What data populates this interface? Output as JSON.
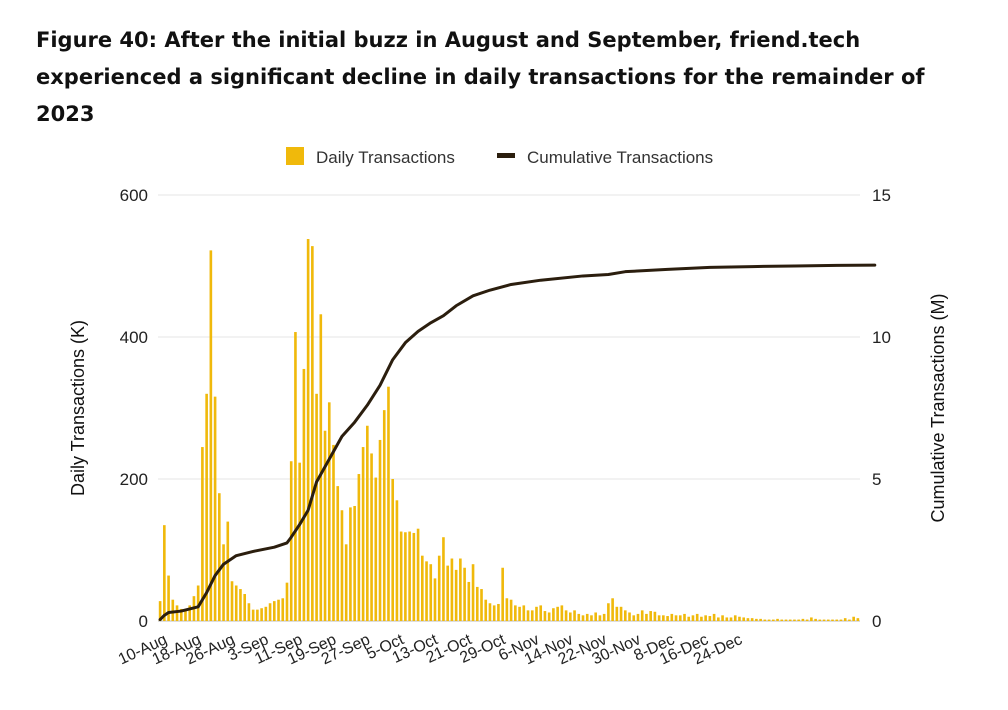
{
  "figure": {
    "title": "Figure 40: After the initial buzz in August and September, friend.tech experienced a significant decline in daily transactions for the remainder of 2023"
  },
  "colors": {
    "bar": "#F0B90B",
    "line": "#2B1E0E",
    "grid": "#e6e6e6",
    "axis": "#bbbbbb"
  },
  "chart_data": {
    "type": "bar+line",
    "title": "Figure 40: After the initial buzz in August and September, friend.tech experienced a significant decline in daily transactions for the remainder of 2023",
    "legend": {
      "position": "top-center",
      "items": [
        "Daily Transactions",
        "Cumulative Transactions"
      ]
    },
    "y_left": {
      "label": "Daily Transactions (K)",
      "range": [
        0,
        600
      ],
      "ticks": [
        "0",
        "200",
        "400",
        "600"
      ]
    },
    "y_right": {
      "label": "Cumulative Transactions (M)",
      "range": [
        0,
        15
      ],
      "ticks": [
        "0",
        "5",
        "10",
        "15"
      ]
    },
    "x_tick_labels": [
      "10-Aug",
      "18-Aug",
      "26-Aug",
      "3-Sep",
      "11-Sep",
      "19-Sep",
      "27-Sep",
      "5-Oct",
      "13-Oct",
      "21-Oct",
      "29-Oct",
      "6-Nov",
      "14-Nov",
      "22-Nov",
      "30-Nov",
      "8-Dec",
      "16-Dec",
      "24-Dec"
    ],
    "x_tick_interval_days": 8,
    "series": [
      {
        "name": "Daily Transactions",
        "kind": "bar",
        "axis": "left",
        "values": [
          28,
          135,
          64,
          30,
          22,
          17,
          15,
          22,
          35,
          50,
          245,
          320,
          522,
          316,
          180,
          108,
          140,
          56,
          50,
          45,
          38,
          25,
          16,
          16,
          18,
          20,
          25,
          28,
          30,
          32,
          54,
          225,
          407,
          223,
          355,
          538,
          528,
          320,
          432,
          268,
          308,
          248,
          190,
          156,
          108,
          160,
          162,
          207,
          245,
          275,
          236,
          202,
          255,
          297,
          330,
          200,
          170,
          126,
          125,
          126,
          124,
          130,
          92,
          84,
          80,
          60,
          92,
          118,
          78,
          88,
          72,
          88,
          75,
          55,
          80,
          48,
          45,
          30,
          25,
          22,
          24,
          75,
          32,
          30,
          22,
          20,
          22,
          15,
          15,
          20,
          22,
          14,
          12,
          18,
          20,
          22,
          15,
          12,
          15,
          10,
          8,
          10,
          8,
          12,
          8,
          10,
          25,
          32,
          20,
          20,
          15,
          12,
          8,
          10,
          15,
          10,
          14,
          13,
          8,
          8,
          7,
          10,
          8,
          8,
          10,
          6,
          8,
          10,
          6,
          8,
          7,
          10,
          5,
          8,
          5,
          5,
          8,
          6,
          5,
          4,
          4,
          3,
          3,
          2,
          2,
          2,
          3,
          2,
          2,
          2,
          2,
          2,
          3,
          2,
          5,
          3,
          2,
          2,
          2,
          2,
          2,
          2,
          4,
          2,
          6,
          4
        ]
      },
      {
        "name": "Cumulative Transactions",
        "kind": "line",
        "axis": "right",
        "points": [
          [
            0,
            0.05
          ],
          [
            1,
            0.2
          ],
          [
            2,
            0.3
          ],
          [
            5,
            0.35
          ],
          [
            9,
            0.5
          ],
          [
            11,
            1.0
          ],
          [
            13,
            1.6
          ],
          [
            15,
            2.0
          ],
          [
            18,
            2.3
          ],
          [
            22,
            2.45
          ],
          [
            27,
            2.6
          ],
          [
            30,
            2.75
          ],
          [
            31,
            2.95
          ],
          [
            33,
            3.4
          ],
          [
            35,
            3.9
          ],
          [
            37,
            4.9
          ],
          [
            40,
            5.7
          ],
          [
            43,
            6.5
          ],
          [
            46,
            7.0
          ],
          [
            49,
            7.6
          ],
          [
            52,
            8.3
          ],
          [
            55,
            9.2
          ],
          [
            58,
            9.8
          ],
          [
            61,
            10.2
          ],
          [
            64,
            10.5
          ],
          [
            67,
            10.75
          ],
          [
            70,
            11.1
          ],
          [
            74,
            11.45
          ],
          [
            78,
            11.65
          ],
          [
            83,
            11.85
          ],
          [
            90,
            12.0
          ],
          [
            100,
            12.15
          ],
          [
            106,
            12.2
          ],
          [
            110,
            12.3
          ],
          [
            120,
            12.38
          ],
          [
            130,
            12.45
          ],
          [
            140,
            12.48
          ],
          [
            150,
            12.5
          ],
          [
            160,
            12.52
          ],
          [
            169,
            12.53
          ]
        ]
      }
    ]
  }
}
